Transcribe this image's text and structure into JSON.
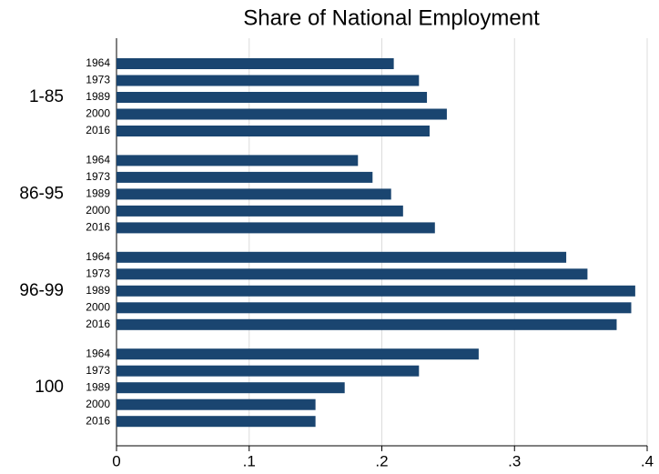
{
  "chart_data": {
    "type": "bar",
    "orientation": "horizontal",
    "title": "Share of National Employment",
    "subcategories": [
      "1964",
      "1973",
      "1989",
      "2000",
      "2016"
    ],
    "groups": [
      {
        "name": "1-85",
        "values": [
          0.209,
          0.228,
          0.234,
          0.249,
          0.236
        ]
      },
      {
        "name": "86-95",
        "values": [
          0.182,
          0.193,
          0.207,
          0.216,
          0.24
        ]
      },
      {
        "name": "96-99",
        "values": [
          0.339,
          0.355,
          0.391,
          0.388,
          0.377
        ]
      },
      {
        "name": "100",
        "values": [
          0.273,
          0.228,
          0.172,
          0.15,
          0.15
        ]
      }
    ],
    "color": "#1a4570",
    "xlim": [
      0,
      0.4
    ],
    "xticks": [
      0,
      {
        "value": 0.1,
        "label": ".1"
      },
      {
        "value": 0.2,
        "label": ".2"
      },
      {
        "value": 0.3,
        "label": ".3"
      },
      {
        "value": 0.4,
        "label": ".4"
      }
    ],
    "grid": true
  }
}
